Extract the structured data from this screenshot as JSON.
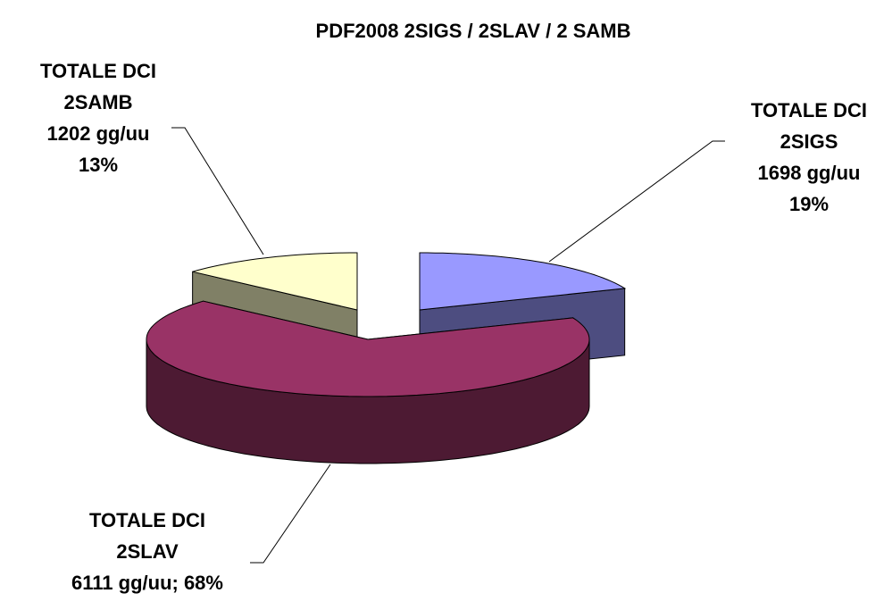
{
  "chart_data": {
    "type": "pie3d",
    "title": "PDF2008 2SIGS / 2SLAV / 2 SAMB",
    "categories": [
      "TOTALE DCI\n2SIGS",
      "TOTALE DCI\n2SLAV",
      "TOTALE DCI\n2SAMB"
    ],
    "values": [
      1698,
      6111,
      1202
    ],
    "value_labels": [
      "1698 gg/uu\n19%",
      "6111 gg/uu; 68%",
      "1202 gg/uu\n13%"
    ],
    "colors": [
      "#9999ff",
      "#993366",
      "#ffffcc"
    ]
  }
}
